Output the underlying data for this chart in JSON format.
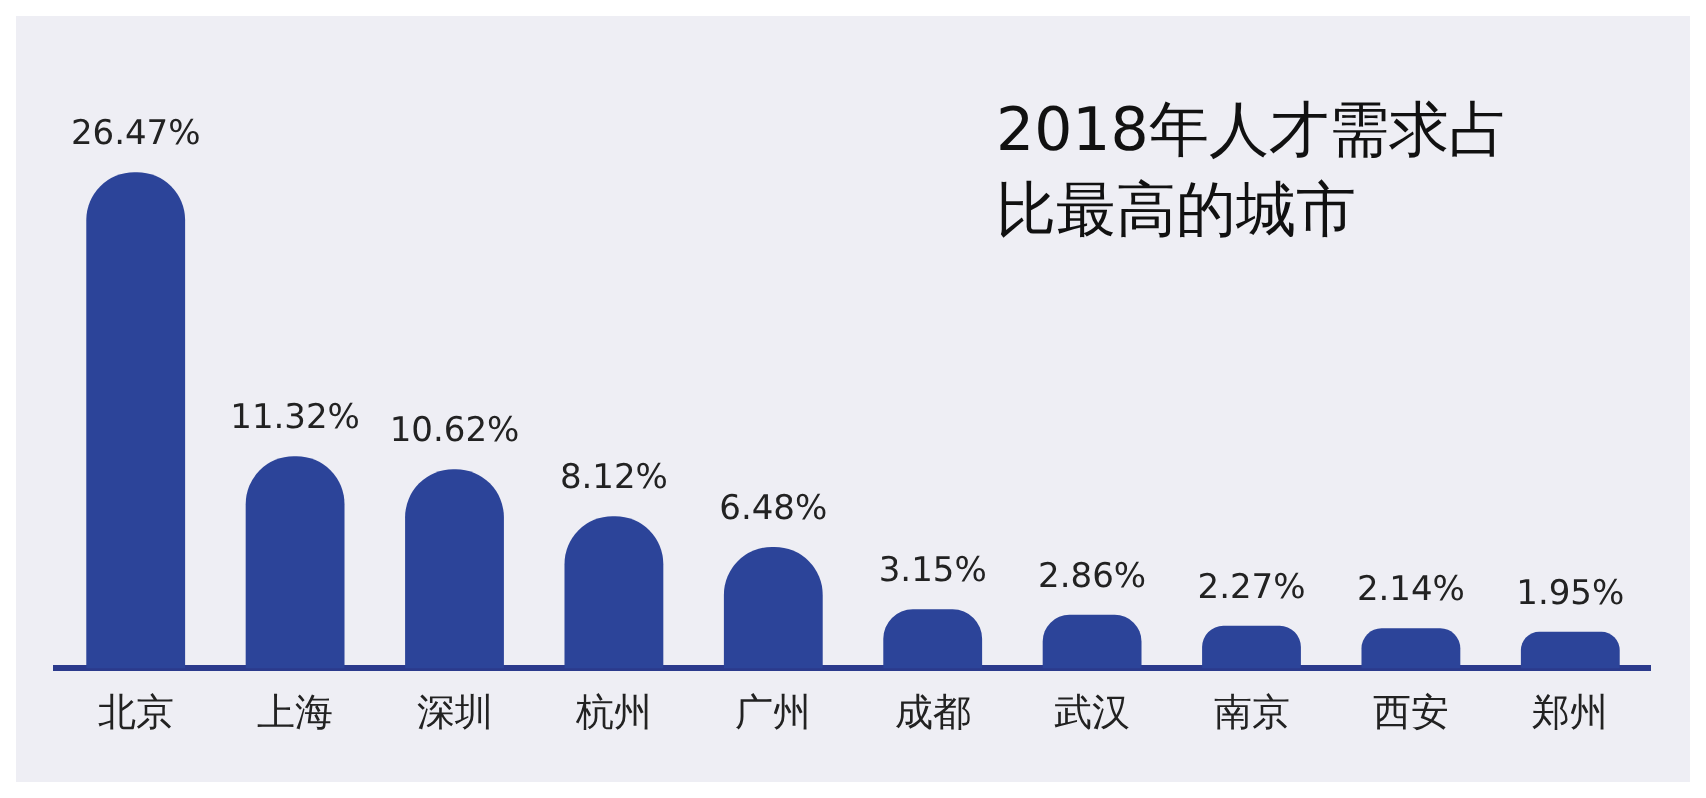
{
  "chart_data": {
    "type": "bar",
    "title": "2018年人才需求占比最高的城市",
    "categories": [
      "北京",
      "上海",
      "深圳",
      "杭州",
      "广州",
      "成都",
      "武汉",
      "南京",
      "西安",
      "郑州"
    ],
    "values": [
      26.47,
      11.32,
      10.62,
      8.12,
      6.48,
      3.15,
      2.86,
      2.27,
      2.14,
      1.95
    ],
    "value_labels": [
      "26.47%",
      "11.32%",
      "10.62%",
      "8.12%",
      "6.48%",
      "3.15%",
      "2.86%",
      "2.27%",
      "2.14%",
      "1.95%"
    ],
    "color": "#2c4499",
    "grid": false,
    "legend": false
  }
}
